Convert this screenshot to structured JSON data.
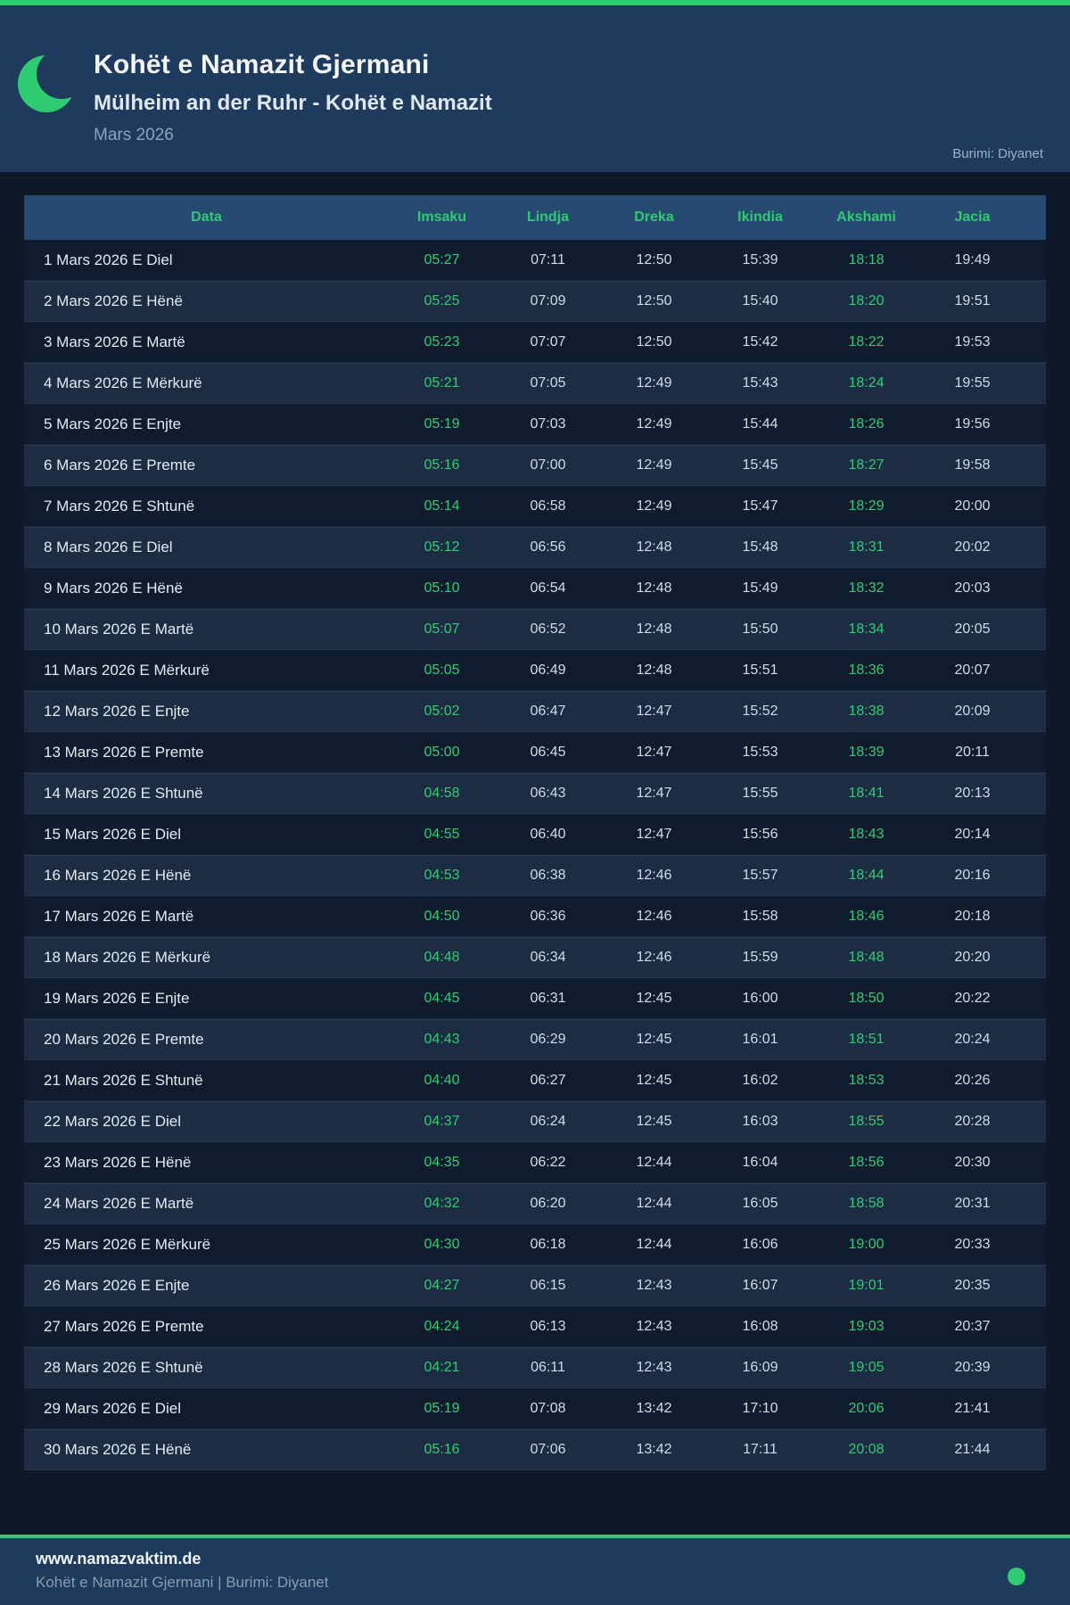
{
  "colors": {
    "accent_green": "#2ecc71",
    "header_bg": "#1e3a5c",
    "page_bg": "#0d1828",
    "table_header_bg": "#274a70",
    "row_dark": "#0f1c2d",
    "row_light": "#1b2c43",
    "time_text": "#d2dbe6"
  },
  "header": {
    "title": "Kohët e Namazit Gjermani",
    "subtitle": "Mülheim an der Ruhr - Kohët e Namazit",
    "month": "Mars 2026",
    "source": "Burimi: Diyanet",
    "icon": "crescent-moon-icon"
  },
  "table": {
    "columns": [
      "Data",
      "Imsaku",
      "Lindja",
      "Dreka",
      "Ikindia",
      "Akshami",
      "Jacia"
    ],
    "rows": [
      {
        "date": "1 Mars 2026 E Diel",
        "times": [
          "05:27",
          "07:11",
          "12:50",
          "15:39",
          "18:18",
          "19:49"
        ]
      },
      {
        "date": "2 Mars 2026 E Hënë",
        "times": [
          "05:25",
          "07:09",
          "12:50",
          "15:40",
          "18:20",
          "19:51"
        ]
      },
      {
        "date": "3 Mars 2026 E Martë",
        "times": [
          "05:23",
          "07:07",
          "12:50",
          "15:42",
          "18:22",
          "19:53"
        ]
      },
      {
        "date": "4 Mars 2026 E Mërkurë",
        "times": [
          "05:21",
          "07:05",
          "12:49",
          "15:43",
          "18:24",
          "19:55"
        ]
      },
      {
        "date": "5 Mars 2026 E Enjte",
        "times": [
          "05:19",
          "07:03",
          "12:49",
          "15:44",
          "18:26",
          "19:56"
        ]
      },
      {
        "date": "6 Mars 2026 E Premte",
        "times": [
          "05:16",
          "07:00",
          "12:49",
          "15:45",
          "18:27",
          "19:58"
        ]
      },
      {
        "date": "7 Mars 2026 E Shtunë",
        "times": [
          "05:14",
          "06:58",
          "12:49",
          "15:47",
          "18:29",
          "20:00"
        ]
      },
      {
        "date": "8 Mars 2026 E Diel",
        "times": [
          "05:12",
          "06:56",
          "12:48",
          "15:48",
          "18:31",
          "20:02"
        ]
      },
      {
        "date": "9 Mars 2026 E Hënë",
        "times": [
          "05:10",
          "06:54",
          "12:48",
          "15:49",
          "18:32",
          "20:03"
        ]
      },
      {
        "date": "10 Mars 2026 E Martë",
        "times": [
          "05:07",
          "06:52",
          "12:48",
          "15:50",
          "18:34",
          "20:05"
        ]
      },
      {
        "date": "11 Mars 2026 E Mërkurë",
        "times": [
          "05:05",
          "06:49",
          "12:48",
          "15:51",
          "18:36",
          "20:07"
        ]
      },
      {
        "date": "12 Mars 2026 E Enjte",
        "times": [
          "05:02",
          "06:47",
          "12:47",
          "15:52",
          "18:38",
          "20:09"
        ]
      },
      {
        "date": "13 Mars 2026 E Premte",
        "times": [
          "05:00",
          "06:45",
          "12:47",
          "15:53",
          "18:39",
          "20:11"
        ]
      },
      {
        "date": "14 Mars 2026 E Shtunë",
        "times": [
          "04:58",
          "06:43",
          "12:47",
          "15:55",
          "18:41",
          "20:13"
        ]
      },
      {
        "date": "15 Mars 2026 E Diel",
        "times": [
          "04:55",
          "06:40",
          "12:47",
          "15:56",
          "18:43",
          "20:14"
        ]
      },
      {
        "date": "16 Mars 2026 E Hënë",
        "times": [
          "04:53",
          "06:38",
          "12:46",
          "15:57",
          "18:44",
          "20:16"
        ]
      },
      {
        "date": "17 Mars 2026 E Martë",
        "times": [
          "04:50",
          "06:36",
          "12:46",
          "15:58",
          "18:46",
          "20:18"
        ]
      },
      {
        "date": "18 Mars 2026 E Mërkurë",
        "times": [
          "04:48",
          "06:34",
          "12:46",
          "15:59",
          "18:48",
          "20:20"
        ]
      },
      {
        "date": "19 Mars 2026 E Enjte",
        "times": [
          "04:45",
          "06:31",
          "12:45",
          "16:00",
          "18:50",
          "20:22"
        ]
      },
      {
        "date": "20 Mars 2026 E Premte",
        "times": [
          "04:43",
          "06:29",
          "12:45",
          "16:01",
          "18:51",
          "20:24"
        ]
      },
      {
        "date": "21 Mars 2026 E Shtunë",
        "times": [
          "04:40",
          "06:27",
          "12:45",
          "16:02",
          "18:53",
          "20:26"
        ]
      },
      {
        "date": "22 Mars 2026 E Diel",
        "times": [
          "04:37",
          "06:24",
          "12:45",
          "16:03",
          "18:55",
          "20:28"
        ]
      },
      {
        "date": "23 Mars 2026 E Hënë",
        "times": [
          "04:35",
          "06:22",
          "12:44",
          "16:04",
          "18:56",
          "20:30"
        ]
      },
      {
        "date": "24 Mars 2026 E Martë",
        "times": [
          "04:32",
          "06:20",
          "12:44",
          "16:05",
          "18:58",
          "20:31"
        ]
      },
      {
        "date": "25 Mars 2026 E Mërkurë",
        "times": [
          "04:30",
          "06:18",
          "12:44",
          "16:06",
          "19:00",
          "20:33"
        ]
      },
      {
        "date": "26 Mars 2026 E Enjte",
        "times": [
          "04:27",
          "06:15",
          "12:43",
          "16:07",
          "19:01",
          "20:35"
        ]
      },
      {
        "date": "27 Mars 2026 E Premte",
        "times": [
          "04:24",
          "06:13",
          "12:43",
          "16:08",
          "19:03",
          "20:37"
        ]
      },
      {
        "date": "28 Mars 2026 E Shtunë",
        "times": [
          "04:21",
          "06:11",
          "12:43",
          "16:09",
          "19:05",
          "20:39"
        ]
      },
      {
        "date": "29 Mars 2026 E Diel",
        "times": [
          "05:19",
          "07:08",
          "13:42",
          "17:10",
          "20:06",
          "21:41"
        ]
      },
      {
        "date": "30 Mars 2026 E Hënë",
        "times": [
          "05:16",
          "07:06",
          "13:42",
          "17:11",
          "20:08",
          "21:44"
        ]
      }
    ]
  },
  "footer": {
    "website": "www.namazvaktim.de",
    "tagline": "Kohët e Namazit Gjermani | Burimi: Diyanet",
    "status_dot": "green-dot-icon"
  }
}
